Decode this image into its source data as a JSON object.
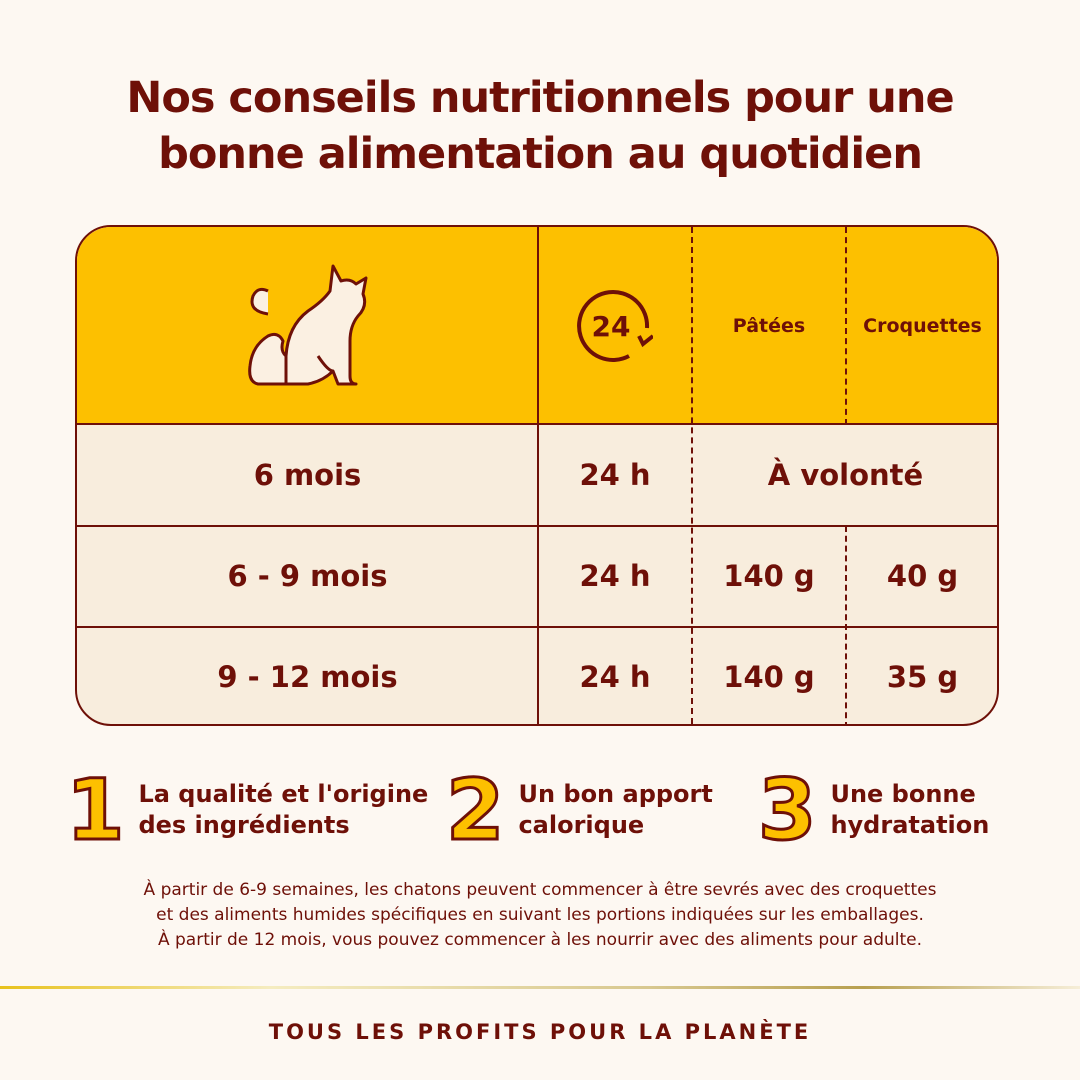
{
  "title": {
    "line1": "Nos conseils nutritionnels pour une",
    "line2": "bonne alimentation au quotidien"
  },
  "table": {
    "header": {
      "icon": "cat-icon",
      "clock_label": "24",
      "col_patees": "Pâtées",
      "col_croquettes": "Croquettes"
    },
    "rows": [
      {
        "age": "6 mois",
        "duration": "24 h",
        "merged": "À volonté"
      },
      {
        "age": "6 - 9 mois",
        "duration": "24 h",
        "patees": "140 g",
        "croquettes": "40 g"
      },
      {
        "age": "9 - 12 mois",
        "duration": "24 h",
        "patees": "140 g",
        "croquettes": "35 g"
      }
    ]
  },
  "tips": [
    {
      "num": "1",
      "l1": "La qualité et l'origine",
      "l2": "des ingrédients"
    },
    {
      "num": "2",
      "l1": "Un bon apport",
      "l2": "calorique"
    },
    {
      "num": "3",
      "l1": "Une bonne",
      "l2": "hydratation"
    }
  ],
  "note": [
    "À partir de 6-9 semaines, les chatons peuvent commencer à être sevrés avec des croquettes",
    "et des aliments humides spécifiques en suivant les portions indiquées sur les emballages.",
    "À partir de 12 mois, vous pouvez commencer à les nourrir avec des aliments pour adulte."
  ],
  "footer": "TOUS LES PROFITS POUR LA PLANÈTE",
  "colors": {
    "primary": "#6e1008",
    "accent": "#fdc000",
    "row_bg": "#f8eddd",
    "page_bg": "#fdf8f2"
  }
}
